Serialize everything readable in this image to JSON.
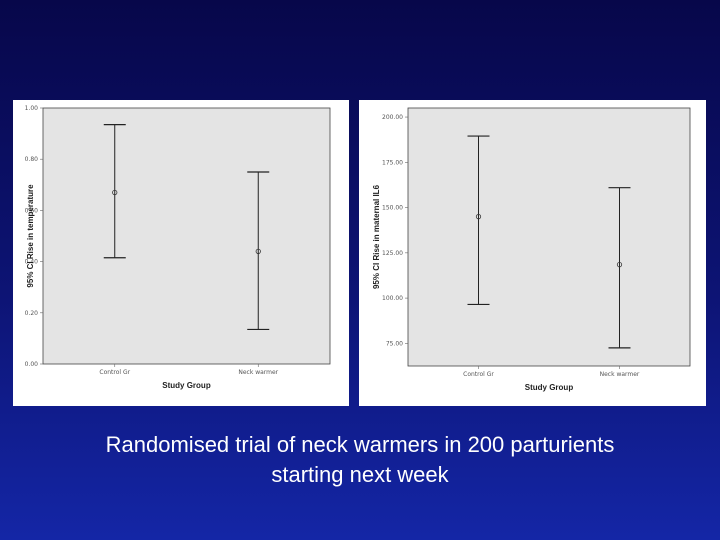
{
  "caption": {
    "line1": "Randomised trial of neck warmers in 200 parturients",
    "line2": "starting next week"
  },
  "chart_data": [
    {
      "type": "errorbar",
      "title": "",
      "xlabel": "Study Group",
      "ylabel": "95% CI Rise in temperature",
      "categories": [
        "Control Gr",
        "Neck warmer"
      ],
      "y_ticks": [
        "1.00",
        "0.80",
        "0.60",
        "0.40",
        "0.20",
        "0.00"
      ],
      "ylim": [
        0.0,
        1.0
      ],
      "points": [
        {
          "category": "Control Gr",
          "mean": 0.67,
          "lower": 0.415,
          "upper": 0.935
        },
        {
          "category": "Neck warmer",
          "mean": 0.44,
          "lower": 0.135,
          "upper": 0.75
        }
      ],
      "background": "#e4e4e4"
    },
    {
      "type": "errorbar",
      "title": "",
      "xlabel": "Study Group",
      "ylabel": "95% CI Rise in maternal IL6",
      "categories": [
        "Control Gr",
        "Neck warmer"
      ],
      "y_ticks": [
        "200.00",
        "175.00",
        "150.00",
        "125.00",
        "100.00",
        "75.00"
      ],
      "ylim": [
        62.5,
        205
      ],
      "points": [
        {
          "category": "Control Gr",
          "mean": 145.0,
          "lower": 96.5,
          "upper": 189.5
        },
        {
          "category": "Neck warmer",
          "mean": 118.5,
          "lower": 72.5,
          "upper": 161.0
        }
      ],
      "background": "#e4e4e4"
    }
  ]
}
